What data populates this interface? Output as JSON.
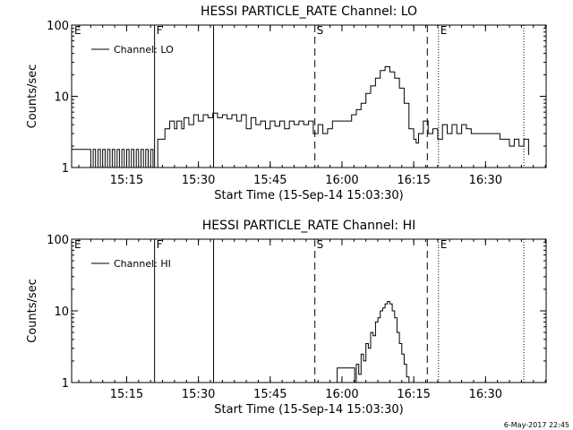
{
  "footer": {
    "timestamp": "6-May-2017 22:45"
  },
  "chart_data": [
    {
      "type": "line",
      "title": "HESSI PARTICLE_RATE Channel: LO",
      "xlabel": "Start Time (15-Sep-14 15:03:30)",
      "ylabel": "Counts/sec",
      "yscale": "log",
      "xlim": [
        "15:03:30",
        "16:42:40"
      ],
      "ylim": [
        1,
        100
      ],
      "x_ticks": [
        "15:15",
        "15:30",
        "15:45",
        "16:00",
        "16:15",
        "16:30"
      ],
      "y_ticks": [
        {
          "value": 1,
          "label": "1"
        },
        {
          "value": 10,
          "label": "10"
        },
        {
          "value": 100,
          "label": "100"
        }
      ],
      "grid": false,
      "legend": {
        "position": "top-left",
        "entries": [
          "Channel: LO"
        ]
      },
      "markers": [
        {
          "label": "F",
          "time": "15:20:50",
          "style": "solid"
        },
        {
          "label": "",
          "time": "15:33:10",
          "style": "solid"
        },
        {
          "label": "S",
          "time": "15:54:20",
          "style": "dashed"
        },
        {
          "label": "",
          "time": "16:17:50",
          "style": "dashed"
        },
        {
          "label": "E",
          "time": "16:20:10",
          "style": "dotted"
        },
        {
          "label": "",
          "time": "16:38:00",
          "style": "dotted"
        }
      ],
      "corner_label": "E",
      "series": [
        {
          "name": "Channel: LO",
          "color": "#000000",
          "x": [
            "15:03:30",
            "15:06:00",
            "15:07:00",
            "15:07:30",
            "15:08:00",
            "15:08:30",
            "15:09:00",
            "15:09:30",
            "15:10:00",
            "15:10:30",
            "15:11:00",
            "15:11:30",
            "15:12:00",
            "15:12:30",
            "15:13:00",
            "15:13:30",
            "15:14:00",
            "15:14:30",
            "15:15:00",
            "15:15:30",
            "15:16:00",
            "15:16:30",
            "15:17:00",
            "15:17:30",
            "15:18:00",
            "15:18:30",
            "15:19:00",
            "15:19:30",
            "15:20:00",
            "15:20:30",
            "15:21:30",
            "15:23:00",
            "15:24:00",
            "15:25:00",
            "15:25:30",
            "15:26:30",
            "15:27:00",
            "15:28:00",
            "15:29:00",
            "15:30:00",
            "15:31:00",
            "15:32:00",
            "15:33:00",
            "15:34:00",
            "15:35:00",
            "15:36:00",
            "15:37:00",
            "15:38:00",
            "15:39:00",
            "15:40:00",
            "15:41:00",
            "15:42:00",
            "15:43:00",
            "15:44:00",
            "15:45:00",
            "15:46:00",
            "15:47:00",
            "15:48:00",
            "15:49:00",
            "15:50:00",
            "15:51:00",
            "15:52:00",
            "15:53:00",
            "15:54:00",
            "15:55:00",
            "15:56:00",
            "15:57:00",
            "15:58:00",
            "15:59:00",
            "16:00:00",
            "16:01:00",
            "16:02:00",
            "16:03:00",
            "16:04:00",
            "16:05:00",
            "16:06:00",
            "16:07:00",
            "16:08:00",
            "16:09:00",
            "16:10:00",
            "16:11:00",
            "16:12:00",
            "16:13:00",
            "16:14:00",
            "16:15:00",
            "16:15:30",
            "16:16:00",
            "16:17:00",
            "16:18:00",
            "16:19:00",
            "16:20:00",
            "16:21:00",
            "16:22:00",
            "16:23:00",
            "16:24:00",
            "16:25:00",
            "16:26:00",
            "16:27:00",
            "16:28:00",
            "16:29:00",
            "16:30:00",
            "16:31:00",
            "16:32:00",
            "16:33:00",
            "16:34:00",
            "16:35:00",
            "16:36:00",
            "16:37:00",
            "16:38:00",
            "16:39:00"
          ],
          "y": [
            1.8,
            1.8,
            1.8,
            1,
            1.8,
            1,
            1.8,
            1,
            1.8,
            1,
            1.8,
            1,
            1.8,
            1,
            1.8,
            1,
            1.8,
            1,
            1.8,
            1,
            1.8,
            1,
            1.8,
            1,
            1.8,
            1,
            1.8,
            1,
            1.8,
            1,
            2.5,
            3.5,
            4.5,
            3.5,
            4.5,
            3.5,
            5,
            4,
            5.5,
            4.5,
            5.5,
            5,
            5.8,
            5,
            5.5,
            4.8,
            5.5,
            4.5,
            5.5,
            3.5,
            5,
            4,
            4.5,
            3.5,
            4.5,
            3.8,
            4.5,
            3.5,
            4.5,
            4,
            4.5,
            4,
            4.5,
            3,
            4,
            3,
            3.5,
            4.5,
            4.5,
            4.5,
            4.5,
            5.5,
            6.5,
            8,
            11,
            14,
            18,
            23,
            26,
            22,
            18,
            13,
            8,
            3.5,
            2.5,
            2.2,
            3,
            4.5,
            3,
            3.5,
            2.5,
            4,
            3,
            4,
            3,
            4,
            3.5,
            3,
            3,
            3,
            3,
            3,
            3,
            2.5,
            2.5,
            2,
            2.5,
            2,
            2.5,
            1.5
          ]
        }
      ]
    },
    {
      "type": "line",
      "title": "HESSI PARTICLE_RATE Channel: HI",
      "xlabel": "Start Time (15-Sep-14 15:03:30)",
      "ylabel": "Counts/sec",
      "yscale": "log",
      "xlim": [
        "15:03:30",
        "16:42:40"
      ],
      "ylim": [
        1,
        100
      ],
      "x_ticks": [
        "15:15",
        "15:30",
        "15:45",
        "16:00",
        "16:15",
        "16:30"
      ],
      "y_ticks": [
        {
          "value": 1,
          "label": "1"
        },
        {
          "value": 10,
          "label": "10"
        },
        {
          "value": 100,
          "label": "100"
        }
      ],
      "grid": false,
      "legend": {
        "position": "top-left",
        "entries": [
          "Channel: HI"
        ]
      },
      "markers": [
        {
          "label": "F",
          "time": "15:20:50",
          "style": "solid"
        },
        {
          "label": "",
          "time": "15:33:10",
          "style": "solid"
        },
        {
          "label": "S",
          "time": "15:54:20",
          "style": "dashed"
        },
        {
          "label": "",
          "time": "16:17:50",
          "style": "dashed"
        },
        {
          "label": "E",
          "time": "16:20:10",
          "style": "dotted"
        },
        {
          "label": "",
          "time": "16:38:00",
          "style": "dotted"
        }
      ],
      "corner_label": "E",
      "series": [
        {
          "name": "Channel: HI",
          "color": "#000000",
          "x": [
            "15:58:40",
            "15:59:00",
            "16:02:40",
            "16:03:00",
            "16:03:30",
            "16:04:00",
            "16:04:30",
            "16:05:00",
            "16:05:30",
            "16:06:00",
            "16:06:30",
            "16:07:00",
            "16:07:30",
            "16:08:00",
            "16:08:30",
            "16:09:00",
            "16:09:30",
            "16:10:00",
            "16:10:30",
            "16:11:00",
            "16:11:30",
            "16:12:00",
            "16:12:30",
            "16:13:00",
            "16:13:30",
            "16:14:00"
          ],
          "y": [
            1,
            1.6,
            1,
            1.8,
            1.3,
            2.5,
            2,
            3.5,
            3,
            5,
            4.5,
            7,
            8,
            10,
            11,
            12.5,
            13.5,
            12.5,
            10,
            8,
            5,
            3.5,
            2.5,
            1.8,
            1.2,
            1
          ]
        }
      ]
    }
  ]
}
